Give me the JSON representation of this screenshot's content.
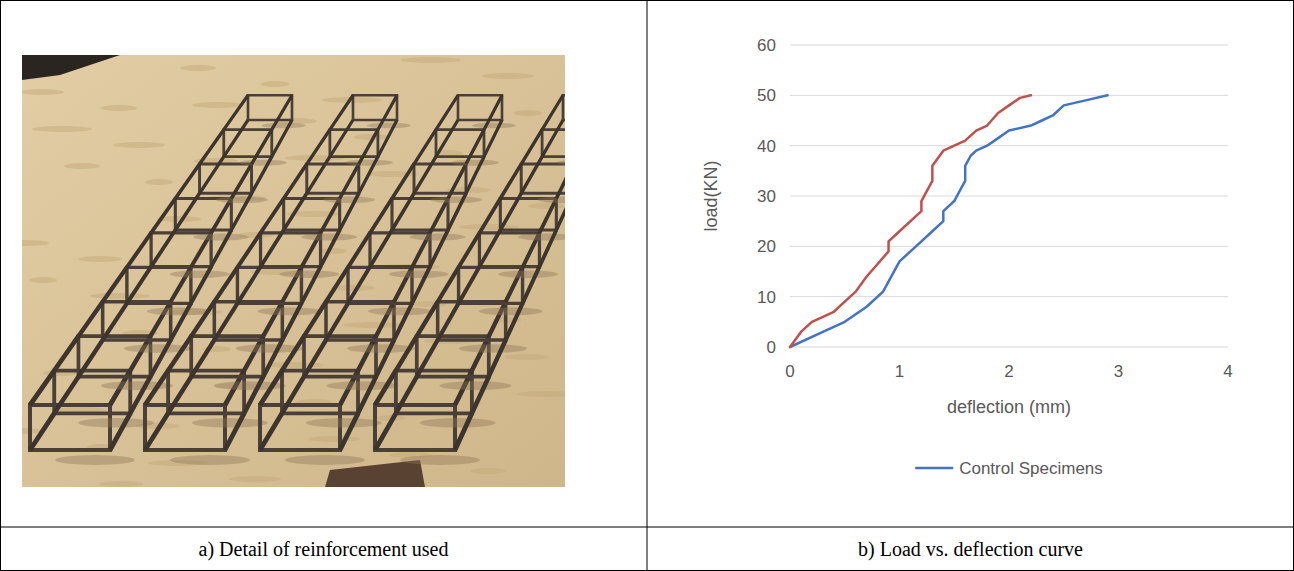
{
  "chart_data": {
    "type": "line",
    "x_label": "deflection (mm)",
    "y_label": "load(KN)",
    "xlim": [
      0,
      4
    ],
    "xticks": [
      0,
      1,
      2,
      3,
      4
    ],
    "ylim": [
      0,
      60
    ],
    "yticks": [
      0,
      10,
      20,
      30,
      40,
      50,
      60
    ],
    "grid": true,
    "legend": "bottom",
    "series": [
      {
        "name": "Control Specimens",
        "color": "#4472c4",
        "x": [
          0,
          0.3,
          0.5,
          0.7,
          0.85,
          1.0,
          1.1,
          1.2,
          1.3,
          1.4,
          1.4,
          1.45,
          1.5,
          1.55,
          1.6,
          1.6,
          1.65,
          1.7,
          1.8,
          1.9,
          2.0,
          2.2,
          2.3,
          2.4,
          2.5,
          2.7,
          2.9
        ],
        "values": [
          0,
          3,
          5,
          8,
          11,
          17,
          19,
          21,
          23,
          25,
          27,
          28,
          29,
          31,
          33,
          36,
          38,
          39,
          40,
          41.5,
          43,
          44,
          45,
          46,
          48,
          49,
          50
        ]
      },
      {
        "color": "#c0504d",
        "x": [
          0,
          0.1,
          0.2,
          0.4,
          0.5,
          0.6,
          0.7,
          0.8,
          0.9,
          0.9,
          1.0,
          1.1,
          1.2,
          1.2,
          1.25,
          1.3,
          1.3,
          1.4,
          1.5,
          1.6,
          1.7,
          1.8,
          1.9,
          2.0,
          2.1,
          2.2
        ],
        "values": [
          0,
          3,
          5,
          7,
          9,
          11,
          14,
          16.5,
          19,
          21,
          23,
          25,
          27,
          29,
          31,
          33,
          36,
          39,
          40,
          41,
          43,
          44,
          46.5,
          48,
          49.5,
          50
        ]
      }
    ]
  },
  "captions": [
    "a) Detail of reinforcement used",
    "b) Load vs. deflection curve"
  ]
}
